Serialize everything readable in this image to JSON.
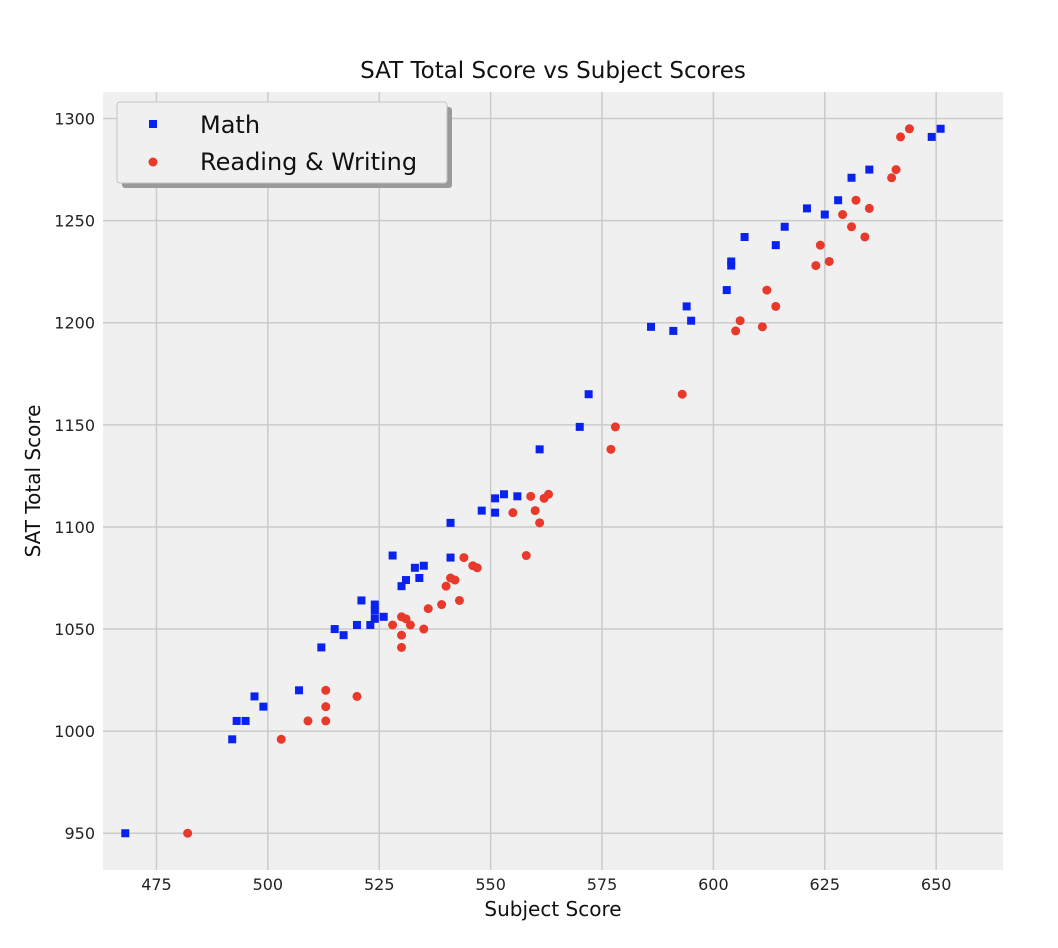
{
  "chart_data": {
    "type": "scatter",
    "title": "SAT Total Score vs Subject Scores",
    "xlabel": "Subject Score",
    "ylabel": "SAT Total Score",
    "xlim": [
      463,
      665
    ],
    "ylim": [
      932,
      1313
    ],
    "xticks": [
      475,
      500,
      525,
      550,
      575,
      600,
      625,
      650
    ],
    "yticks": [
      950,
      1000,
      1050,
      1100,
      1150,
      1200,
      1250,
      1300
    ],
    "grid": true,
    "legend_position": "top-left",
    "series": [
      {
        "name": "Math",
        "marker": "square",
        "color": "#0a22ee",
        "points": [
          [
            468,
            950
          ],
          [
            492,
            996
          ],
          [
            493,
            1005
          ],
          [
            495,
            1005
          ],
          [
            497,
            1017
          ],
          [
            499,
            1012
          ],
          [
            507,
            1020
          ],
          [
            512,
            1041
          ],
          [
            515,
            1050
          ],
          [
            517,
            1047
          ],
          [
            520,
            1052
          ],
          [
            521,
            1064
          ],
          [
            523,
            1052
          ],
          [
            524,
            1062
          ],
          [
            524,
            1059
          ],
          [
            524,
            1055
          ],
          [
            526,
            1056
          ],
          [
            528,
            1086
          ],
          [
            530,
            1071
          ],
          [
            531,
            1074
          ],
          [
            533,
            1080
          ],
          [
            534,
            1075
          ],
          [
            535,
            1081
          ],
          [
            541,
            1102
          ],
          [
            541,
            1085
          ],
          [
            548,
            1108
          ],
          [
            551,
            1114
          ],
          [
            551,
            1107
          ],
          [
            553,
            1116
          ],
          [
            556,
            1115
          ],
          [
            561,
            1138
          ],
          [
            570,
            1149
          ],
          [
            572,
            1165
          ],
          [
            586,
            1198
          ],
          [
            591,
            1196
          ],
          [
            594,
            1208
          ],
          [
            595,
            1201
          ],
          [
            603,
            1216
          ],
          [
            604,
            1230
          ],
          [
            604,
            1228
          ],
          [
            607,
            1242
          ],
          [
            614,
            1238
          ],
          [
            616,
            1247
          ],
          [
            621,
            1256
          ],
          [
            625,
            1253
          ],
          [
            628,
            1260
          ],
          [
            631,
            1271
          ],
          [
            635,
            1275
          ],
          [
            649,
            1291
          ],
          [
            651,
            1295
          ]
        ]
      },
      {
        "name": "Reading & Writing",
        "marker": "circle",
        "color": "#e8392b",
        "points": [
          [
            482,
            950
          ],
          [
            503,
            996
          ],
          [
            509,
            1005
          ],
          [
            513,
            1005
          ],
          [
            513,
            1012
          ],
          [
            513,
            1020
          ],
          [
            520,
            1017
          ],
          [
            528,
            1052
          ],
          [
            530,
            1041
          ],
          [
            530,
            1047
          ],
          [
            530,
            1056
          ],
          [
            531,
            1055
          ],
          [
            532,
            1052
          ],
          [
            535,
            1050
          ],
          [
            536,
            1060
          ],
          [
            539,
            1062
          ],
          [
            540,
            1071
          ],
          [
            541,
            1075
          ],
          [
            542,
            1074
          ],
          [
            543,
            1064
          ],
          [
            544,
            1085
          ],
          [
            546,
            1081
          ],
          [
            547,
            1080
          ],
          [
            555,
            1107
          ],
          [
            558,
            1086
          ],
          [
            559,
            1115
          ],
          [
            560,
            1108
          ],
          [
            561,
            1102
          ],
          [
            562,
            1114
          ],
          [
            563,
            1116
          ],
          [
            577,
            1138
          ],
          [
            578,
            1149
          ],
          [
            593,
            1165
          ],
          [
            605,
            1196
          ],
          [
            606,
            1201
          ],
          [
            611,
            1198
          ],
          [
            612,
            1216
          ],
          [
            614,
            1208
          ],
          [
            623,
            1228
          ],
          [
            624,
            1238
          ],
          [
            626,
            1230
          ],
          [
            629,
            1253
          ],
          [
            631,
            1247
          ],
          [
            632,
            1260
          ],
          [
            634,
            1242
          ],
          [
            635,
            1256
          ],
          [
            640,
            1271
          ],
          [
            641,
            1275
          ],
          [
            642,
            1291
          ],
          [
            644,
            1295
          ]
        ]
      }
    ]
  }
}
